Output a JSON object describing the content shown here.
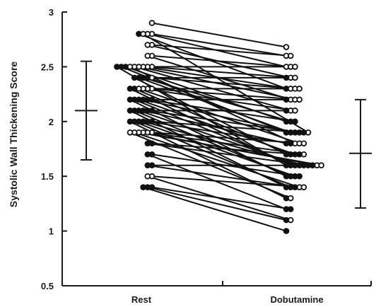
{
  "chart_data": {
    "type": "scatter",
    "title": "",
    "xlabel": "",
    "ylabel": "Systolic Wall Thickening Score",
    "categories": [
      "Rest",
      "Dobutamine"
    ],
    "ylim": [
      0.5,
      3
    ],
    "yticks": [
      "0.5",
      "1",
      "1.5",
      "2",
      "2.5",
      "3"
    ],
    "grid": false,
    "legend": "none",
    "colors": {
      "line": "#111111",
      "open_marker_fill": "#ffffff",
      "filled_marker_fill": "#111111"
    },
    "marker_styles": [
      "open",
      "filled"
    ],
    "summary": [
      {
        "category": "Rest",
        "mean": 2.1,
        "low": 1.65,
        "high": 2.55
      },
      {
        "category": "Dobutamine",
        "mean": 1.71,
        "low": 1.21,
        "high": 2.2
      }
    ],
    "pairs": [
      [
        2.9,
        2.68,
        "o"
      ],
      [
        2.8,
        2.6,
        "o"
      ],
      [
        2.8,
        2.5,
        "o"
      ],
      [
        2.8,
        2.3,
        "f"
      ],
      [
        2.8,
        1.9,
        "o"
      ],
      [
        2.7,
        2.6,
        "o"
      ],
      [
        2.7,
        2.4,
        "o"
      ],
      [
        2.6,
        2.5,
        "o"
      ],
      [
        2.6,
        2.2,
        "o"
      ],
      [
        2.5,
        2.5,
        "o"
      ],
      [
        2.5,
        2.4,
        "o"
      ],
      [
        2.5,
        2.3,
        "o"
      ],
      [
        2.5,
        2.2,
        "o"
      ],
      [
        2.5,
        2.1,
        "o"
      ],
      [
        2.5,
        2.0,
        "f"
      ],
      [
        2.5,
        1.9,
        "f"
      ],
      [
        2.5,
        1.8,
        "o"
      ],
      [
        2.5,
        1.6,
        "f"
      ],
      [
        2.4,
        2.4,
        "f"
      ],
      [
        2.4,
        2.3,
        "o"
      ],
      [
        2.4,
        2.0,
        "f"
      ],
      [
        2.4,
        1.9,
        "f"
      ],
      [
        2.4,
        1.7,
        "f"
      ],
      [
        2.3,
        2.3,
        "o"
      ],
      [
        2.3,
        2.2,
        "o"
      ],
      [
        2.3,
        2.1,
        "o"
      ],
      [
        2.3,
        1.8,
        "o"
      ],
      [
        2.3,
        1.7,
        "f"
      ],
      [
        2.3,
        1.6,
        "f"
      ],
      [
        2.2,
        2.2,
        "f"
      ],
      [
        2.2,
        2.0,
        "f"
      ],
      [
        2.2,
        1.9,
        "f"
      ],
      [
        2.2,
        1.7,
        "f"
      ],
      [
        2.2,
        1.6,
        "f"
      ],
      [
        2.2,
        1.5,
        "f"
      ],
      [
        2.1,
        2.1,
        "f"
      ],
      [
        2.1,
        1.9,
        "f"
      ],
      [
        2.1,
        1.8,
        "f"
      ],
      [
        2.1,
        1.6,
        "f"
      ],
      [
        2.1,
        1.5,
        "f"
      ],
      [
        2.1,
        1.4,
        "f"
      ],
      [
        2.0,
        1.9,
        "f"
      ],
      [
        2.0,
        1.8,
        "f"
      ],
      [
        2.0,
        1.6,
        "f"
      ],
      [
        2.0,
        1.5,
        "f"
      ],
      [
        2.0,
        1.4,
        "f"
      ],
      [
        2.0,
        1.3,
        "f"
      ],
      [
        1.9,
        1.8,
        "o"
      ],
      [
        1.9,
        1.7,
        "o"
      ],
      [
        1.9,
        1.6,
        "o"
      ],
      [
        1.9,
        1.6,
        "o"
      ],
      [
        1.9,
        1.4,
        "o"
      ],
      [
        1.9,
        1.3,
        "o"
      ],
      [
        1.8,
        1.7,
        "f"
      ],
      [
        1.8,
        1.6,
        "f"
      ],
      [
        1.7,
        1.5,
        "f"
      ],
      [
        1.7,
        1.2,
        "f"
      ],
      [
        1.6,
        1.6,
        "f"
      ],
      [
        1.6,
        1.4,
        "f"
      ],
      [
        1.5,
        1.4,
        "o"
      ],
      [
        1.5,
        1.1,
        "o"
      ],
      [
        1.4,
        1.2,
        "f"
      ],
      [
        1.4,
        1.1,
        "f"
      ],
      [
        1.4,
        1.0,
        "f"
      ]
    ]
  }
}
